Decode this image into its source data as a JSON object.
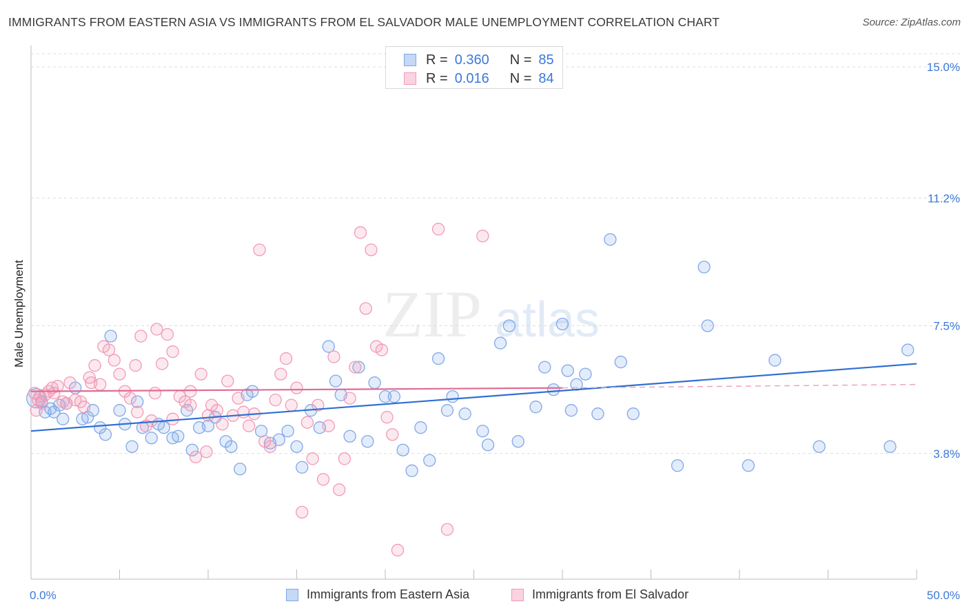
{
  "title": "IMMIGRANTS FROM EASTERN ASIA VS IMMIGRANTS FROM EL SALVADOR MALE UNEMPLOYMENT CORRELATION CHART",
  "source": "Source: ZipAtlas.com",
  "watermark": {
    "zip": "ZIP",
    "atlas": "atlas"
  },
  "legend": {
    "rows": [
      {
        "r_label": "R =",
        "r_value": "0.360",
        "n_label": "N =",
        "n_value": "85",
        "color": "#7fa8e8"
      },
      {
        "r_label": "R =",
        "r_value": "0.016",
        "n_label": "N =",
        "n_value": "84",
        "color": "#f19ab5"
      }
    ]
  },
  "bottom_legend": [
    {
      "label": "Immigrants from Eastern Asia",
      "color": "#7fa8e8"
    },
    {
      "label": "Immigrants from El Salvador",
      "color": "#f19ab5"
    }
  ],
  "chart_data": {
    "type": "scatter",
    "title": "IMMIGRANTS FROM EASTERN ASIA VS IMMIGRANTS FROM EL SALVADOR MALE UNEMPLOYMENT CORRELATION CHART",
    "xlabel": "",
    "ylabel": "Male Unemployment",
    "xlim": [
      0,
      50
    ],
    "ylim": [
      0,
      15.5
    ],
    "x_tick_labels": [
      "0.0%",
      "50.0%"
    ],
    "y_ticks": [
      3.8,
      7.5,
      11.2,
      15.0
    ],
    "y_tick_labels": [
      "3.8%",
      "7.5%",
      "11.2%",
      "15.0%"
    ],
    "grid": "horizontal dashed",
    "legend_position": "top-center",
    "series": [
      {
        "name": "Immigrants from Eastern Asia",
        "color": "#7fa8e8",
        "trend": {
          "x": [
            0,
            50
          ],
          "y": [
            4.45,
            6.4
          ],
          "style": "solid"
        },
        "points": [
          [
            0.3,
            5.4
          ],
          [
            0.6,
            5.3
          ],
          [
            0.8,
            5.0
          ],
          [
            1.1,
            5.1
          ],
          [
            1.3,
            5.0
          ],
          [
            1.6,
            5.2
          ],
          [
            2.0,
            5.25
          ],
          [
            1.8,
            4.8
          ],
          [
            2.5,
            5.7
          ],
          [
            2.9,
            4.8
          ],
          [
            3.2,
            4.85
          ],
          [
            3.5,
            5.05
          ],
          [
            3.9,
            4.55
          ],
          [
            4.2,
            4.35
          ],
          [
            4.5,
            7.2
          ],
          [
            5.0,
            5.05
          ],
          [
            5.3,
            4.65
          ],
          [
            5.7,
            4.0
          ],
          [
            6.0,
            5.3
          ],
          [
            6.3,
            4.55
          ],
          [
            6.8,
            4.25
          ],
          [
            7.2,
            4.65
          ],
          [
            7.5,
            4.55
          ],
          [
            8.0,
            4.25
          ],
          [
            8.3,
            4.3
          ],
          [
            8.8,
            5.05
          ],
          [
            9.1,
            3.9
          ],
          [
            9.5,
            4.55
          ],
          [
            10.0,
            4.6
          ],
          [
            10.4,
            4.85
          ],
          [
            11.0,
            4.15
          ],
          [
            11.3,
            4.0
          ],
          [
            11.8,
            3.35
          ],
          [
            12.2,
            5.5
          ],
          [
            12.5,
            5.6
          ],
          [
            13.0,
            4.45
          ],
          [
            13.5,
            4.1
          ],
          [
            14.0,
            4.2
          ],
          [
            14.5,
            4.45
          ],
          [
            15.0,
            4.0
          ],
          [
            15.3,
            3.4
          ],
          [
            15.8,
            5.05
          ],
          [
            16.3,
            4.55
          ],
          [
            16.8,
            6.9
          ],
          [
            17.2,
            5.9
          ],
          [
            17.5,
            5.5
          ],
          [
            18.0,
            4.3
          ],
          [
            18.5,
            6.3
          ],
          [
            19.0,
            4.15
          ],
          [
            19.4,
            5.85
          ],
          [
            20.0,
            5.45
          ],
          [
            20.5,
            5.45
          ],
          [
            21.0,
            3.9
          ],
          [
            21.5,
            3.3
          ],
          [
            22.0,
            4.55
          ],
          [
            22.5,
            3.6
          ],
          [
            23.0,
            6.55
          ],
          [
            23.5,
            5.05
          ],
          [
            23.8,
            5.45
          ],
          [
            24.5,
            4.95
          ],
          [
            25.5,
            4.45
          ],
          [
            25.8,
            4.05
          ],
          [
            26.5,
            7.0
          ],
          [
            27.0,
            7.5
          ],
          [
            27.5,
            4.15
          ],
          [
            28.5,
            5.15
          ],
          [
            29.0,
            6.3
          ],
          [
            29.5,
            5.65
          ],
          [
            30.0,
            7.55
          ],
          [
            30.3,
            6.2
          ],
          [
            30.5,
            5.05
          ],
          [
            30.8,
            5.8
          ],
          [
            31.3,
            6.1
          ],
          [
            32.0,
            4.95
          ],
          [
            32.7,
            10.0
          ],
          [
            33.3,
            6.45
          ],
          [
            34.0,
            4.95
          ],
          [
            36.5,
            3.45
          ],
          [
            38.0,
            9.2
          ],
          [
            38.2,
            7.5
          ],
          [
            40.5,
            3.45
          ],
          [
            42.0,
            6.5
          ],
          [
            44.5,
            4.0
          ],
          [
            48.5,
            4.0
          ],
          [
            49.5,
            6.8
          ]
        ]
      },
      {
        "name": "Immigrants from El Salvador",
        "color": "#f19ab5",
        "trend": {
          "x": [
            0,
            30
          ],
          "y": [
            5.6,
            5.7
          ],
          "style": "solid",
          "dashed_to": [
            50,
            5.8
          ]
        },
        "points": [
          [
            0.2,
            5.55
          ],
          [
            0.4,
            5.35
          ],
          [
            0.6,
            5.25
          ],
          [
            0.8,
            5.5
          ],
          [
            1.0,
            5.6
          ],
          [
            1.2,
            5.7
          ],
          [
            1.5,
            5.75
          ],
          [
            1.8,
            5.3
          ],
          [
            2.2,
            5.85
          ],
          [
            2.5,
            5.35
          ],
          [
            2.8,
            5.3
          ],
          [
            3.0,
            5.15
          ],
          [
            3.3,
            6.0
          ],
          [
            3.6,
            6.35
          ],
          [
            3.9,
            5.8
          ],
          [
            4.1,
            6.9
          ],
          [
            4.4,
            6.8
          ],
          [
            4.7,
            6.5
          ],
          [
            5.0,
            6.1
          ],
          [
            5.3,
            5.6
          ],
          [
            5.6,
            5.4
          ],
          [
            5.9,
            6.35
          ],
          [
            6.2,
            7.2
          ],
          [
            6.5,
            4.6
          ],
          [
            6.8,
            4.75
          ],
          [
            7.1,
            7.4
          ],
          [
            7.4,
            6.4
          ],
          [
            7.7,
            7.25
          ],
          [
            8.0,
            6.75
          ],
          [
            8.4,
            5.45
          ],
          [
            8.7,
            5.3
          ],
          [
            9.0,
            5.6
          ],
          [
            9.3,
            3.7
          ],
          [
            9.6,
            6.1
          ],
          [
            9.9,
            3.85
          ],
          [
            10.2,
            5.2
          ],
          [
            10.5,
            5.05
          ],
          [
            10.8,
            4.65
          ],
          [
            11.1,
            5.9
          ],
          [
            11.4,
            4.9
          ],
          [
            11.7,
            5.4
          ],
          [
            12.0,
            5.0
          ],
          [
            12.3,
            4.6
          ],
          [
            12.6,
            4.95
          ],
          [
            12.9,
            9.7
          ],
          [
            13.2,
            4.15
          ],
          [
            13.5,
            4.0
          ],
          [
            13.8,
            5.35
          ],
          [
            14.1,
            6.1
          ],
          [
            14.4,
            6.55
          ],
          [
            14.7,
            5.2
          ],
          [
            15.0,
            5.7
          ],
          [
            15.3,
            2.1
          ],
          [
            15.6,
            4.7
          ],
          [
            15.9,
            3.65
          ],
          [
            16.2,
            5.2
          ],
          [
            16.5,
            3.05
          ],
          [
            16.8,
            4.6
          ],
          [
            17.1,
            6.6
          ],
          [
            17.4,
            2.75
          ],
          [
            17.7,
            3.65
          ],
          [
            18.0,
            5.4
          ],
          [
            18.3,
            6.3
          ],
          [
            18.6,
            10.2
          ],
          [
            18.9,
            8.0
          ],
          [
            19.2,
            9.7
          ],
          [
            19.5,
            6.9
          ],
          [
            19.8,
            6.8
          ],
          [
            20.1,
            4.85
          ],
          [
            20.4,
            4.35
          ],
          [
            20.7,
            1.0
          ],
          [
            23.0,
            10.3
          ],
          [
            23.5,
            1.6
          ],
          [
            25.5,
            10.1
          ],
          [
            0.3,
            5.05
          ],
          [
            0.5,
            5.45
          ],
          [
            1.3,
            5.55
          ],
          [
            2.0,
            5.25
          ],
          [
            3.4,
            5.85
          ],
          [
            6.0,
            5.0
          ],
          [
            7.0,
            5.55
          ],
          [
            8.0,
            4.8
          ],
          [
            9.0,
            5.2
          ],
          [
            10.0,
            4.9
          ]
        ]
      }
    ]
  }
}
